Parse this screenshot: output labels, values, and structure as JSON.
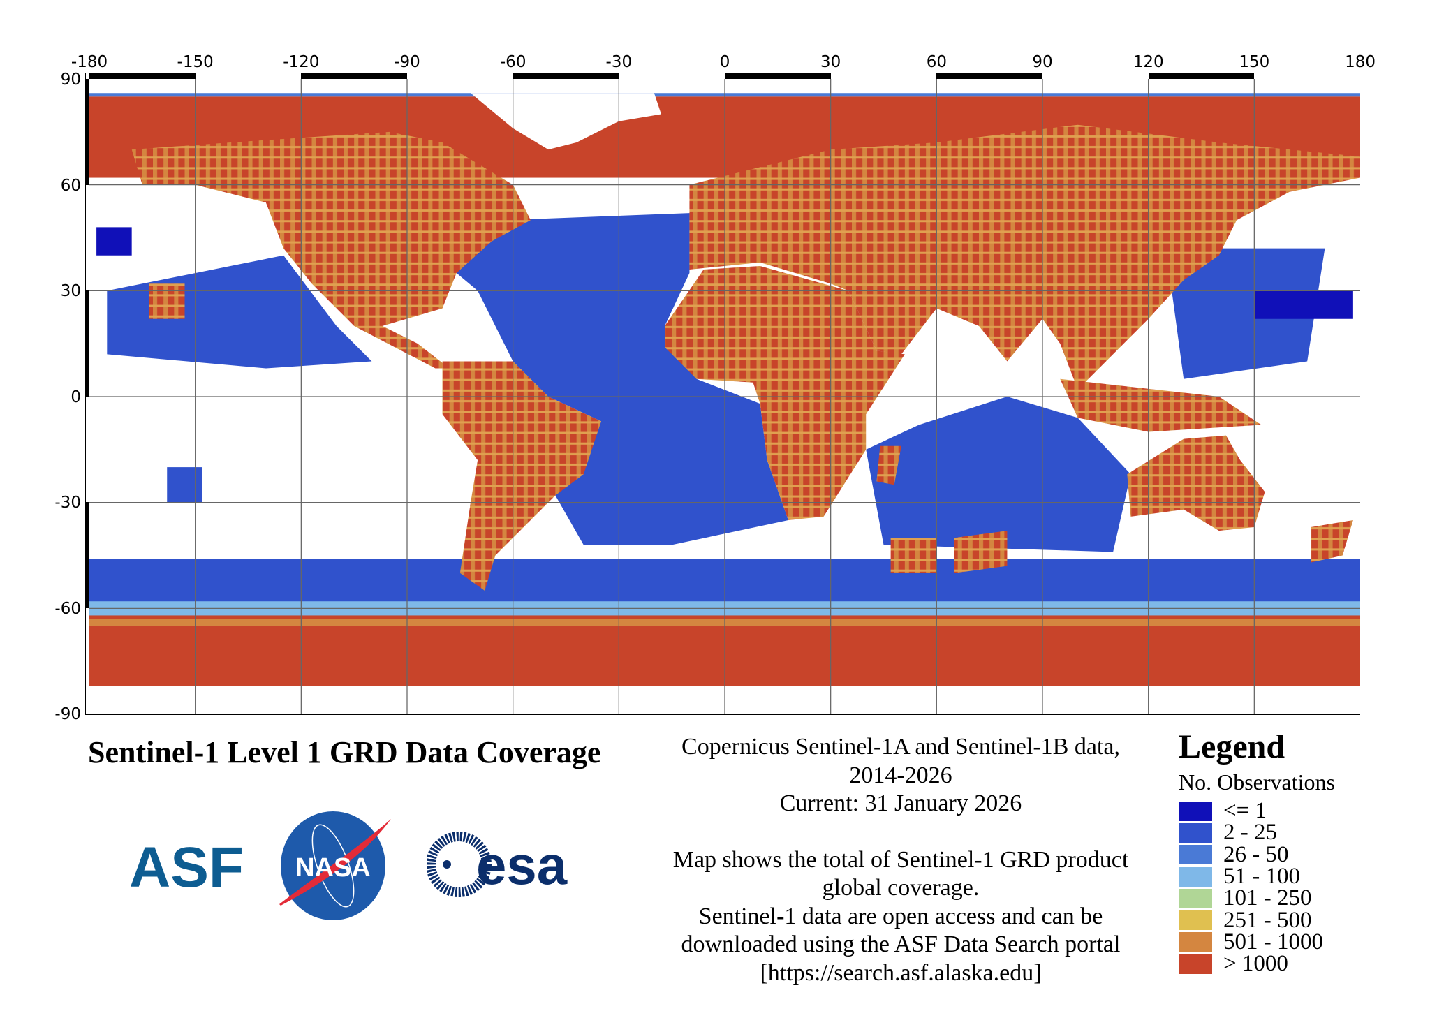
{
  "axes": {
    "x_ticks": [
      "-180",
      "-150",
      "-120",
      "-90",
      "-60",
      "-30",
      "0",
      "30",
      "60",
      "90",
      "120",
      "150",
      "180"
    ],
    "y_ticks": [
      "90",
      "60",
      "30",
      "0",
      "-30",
      "-60",
      "-90"
    ]
  },
  "title": "Sentinel-1 Level 1 GRD Data Coverage",
  "info": {
    "line1": "Copernicus Sentinel-1A and Sentinel-1B data,",
    "line2": "2014-2026",
    "line3": "Current: 31 January 2026",
    "line4": "Map shows the total of Sentinel-1 GRD product",
    "line5": "global coverage.",
    "line6": "Sentinel-1 data are open access and can be",
    "line7": "downloaded using the ASF Data Search portal",
    "line8": "[https://search.asf.alaska.edu]"
  },
  "logos": {
    "asf": "ASF",
    "nasa": "NASA",
    "esa": "esa"
  },
  "legend": {
    "title": "Legend",
    "subtitle": "No. Observations",
    "items": [
      {
        "label": "<= 1",
        "color": "#1010b8"
      },
      {
        "label": "2 - 25",
        "color": "#3052cc"
      },
      {
        "label": "26 - 50",
        "color": "#4a7ad6"
      },
      {
        "label": "51 - 100",
        "color": "#7fb8e8"
      },
      {
        "label": "101 - 250",
        "color": "#b0d696"
      },
      {
        "label": "251 - 500",
        "color": "#e0c050"
      },
      {
        "label": "501 - 1000",
        "color": "#d48640"
      },
      {
        "label": "> 1000",
        "color": "#c8442a"
      }
    ]
  }
}
